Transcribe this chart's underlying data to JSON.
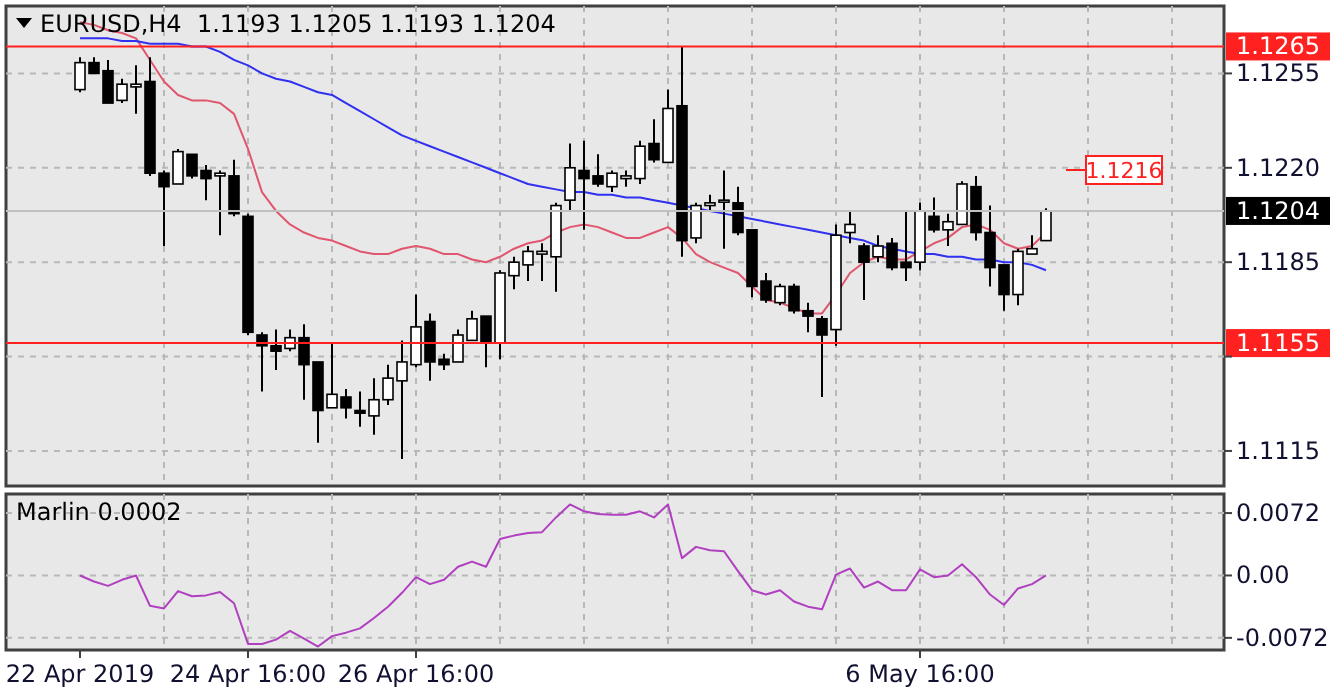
{
  "chart_data": [
    {
      "type": "candlestick",
      "title": "EURUSD,H4  1.1193 1.1205 1.1193 1.1204",
      "tick_labels": "y",
      "grid": true,
      "categories": [
        null,
        null,
        null,
        null,
        null,
        null,
        null,
        null,
        null,
        null,
        null,
        null,
        null,
        null,
        null,
        null,
        null,
        null,
        null,
        null,
        null,
        null,
        null,
        null,
        null,
        null,
        null,
        null,
        null,
        null,
        null,
        null,
        null,
        null,
        null,
        null,
        null,
        null,
        null,
        null,
        null,
        null,
        null,
        null,
        null,
        null,
        null,
        null,
        null,
        null,
        null,
        null,
        null,
        null,
        null,
        null,
        null,
        null,
        null,
        null,
        null,
        null,
        null,
        null,
        null,
        null,
        null,
        null,
        null,
        null
      ],
      "ohlc": [
        [
          1.1249,
          1.1261,
          1.1248,
          1.1259
        ],
        [
          1.1259,
          1.1261,
          1.1255,
          1.1255
        ],
        [
          1.1256,
          1.126,
          1.1244,
          1.1244
        ],
        [
          1.1245,
          1.1253,
          1.1244,
          1.1251
        ],
        [
          1.125,
          1.1258,
          1.124,
          1.1251
        ],
        [
          1.1252,
          1.1261,
          1.1217,
          1.1218
        ],
        [
          1.1218,
          1.1219,
          1.1191,
          1.1213
        ],
        [
          1.1214,
          1.1227,
          1.1214,
          1.1226
        ],
        [
          1.1225,
          1.1225,
          1.1216,
          1.1217
        ],
        [
          1.1219,
          1.1221,
          1.1208,
          1.1216
        ],
        [
          1.1217,
          1.1219,
          1.1195,
          1.1218
        ],
        [
          1.1217,
          1.1223,
          1.1202,
          1.1203
        ],
        [
          1.1202,
          1.1203,
          1.1158,
          1.1159
        ],
        [
          1.1158,
          1.1159,
          1.1137,
          1.1154
        ],
        [
          1.1154,
          1.116,
          1.1145,
          1.1152
        ],
        [
          1.1153,
          1.116,
          1.1152,
          1.1157
        ],
        [
          1.1157,
          1.1162,
          1.1134,
          1.1147
        ],
        [
          1.1148,
          1.1148,
          1.1118,
          1.113
        ],
        [
          1.1131,
          1.1155,
          1.1131,
          1.1136
        ],
        [
          1.1135,
          1.1138,
          1.1127,
          1.1131
        ],
        [
          1.113,
          1.1137,
          1.1124,
          1.1129
        ],
        [
          1.1128,
          1.1142,
          1.1121,
          1.1134
        ],
        [
          1.1134,
          1.1147,
          1.1132,
          1.1142
        ],
        [
          1.1141,
          1.1156,
          1.1112,
          1.1148
        ],
        [
          1.1147,
          1.1173,
          1.1146,
          1.1161
        ],
        [
          1.1163,
          1.1166,
          1.1141,
          1.1148
        ],
        [
          1.1149,
          1.1151,
          1.1145,
          1.1147
        ],
        [
          1.1148,
          1.116,
          1.1148,
          1.1158
        ],
        [
          1.1156,
          1.1167,
          1.1156,
          1.1164
        ],
        [
          1.1165,
          1.1165,
          1.1146,
          1.1155
        ],
        [
          1.1155,
          1.1182,
          1.1149,
          1.1181
        ],
        [
          1.118,
          1.1187,
          1.1175,
          1.1185
        ],
        [
          1.1184,
          1.1191,
          1.1178,
          1.1189
        ],
        [
          1.1188,
          1.1192,
          1.1178,
          1.1189
        ],
        [
          1.1187,
          1.1207,
          1.1174,
          1.1206
        ],
        [
          1.1208,
          1.1229,
          1.1204,
          1.122
        ],
        [
          1.1219,
          1.123,
          1.1197,
          1.1216
        ],
        [
          1.1217,
          1.1225,
          1.1213,
          1.1214
        ],
        [
          1.1213,
          1.1219,
          1.1211,
          1.1218
        ],
        [
          1.1216,
          1.1219,
          1.1213,
          1.1217
        ],
        [
          1.1216,
          1.123,
          1.1214,
          1.1228
        ],
        [
          1.1229,
          1.1238,
          1.1222,
          1.1223
        ],
        [
          1.1222,
          1.1249,
          1.1222,
          1.1242
        ],
        [
          1.1243,
          1.1265,
          1.1187,
          1.1193
        ],
        [
          1.1194,
          1.1207,
          1.1192,
          1.1206
        ],
        [
          1.1206,
          1.121,
          1.1204,
          1.1207
        ],
        [
          1.1208,
          1.1219,
          1.119,
          1.1208
        ],
        [
          1.1207,
          1.1213,
          1.1195,
          1.1196
        ],
        [
          1.1197,
          1.1197,
          1.1172,
          1.1176
        ],
        [
          1.1178,
          1.1181,
          1.117,
          1.1171
        ],
        [
          1.117,
          1.1177,
          1.1169,
          1.1176
        ],
        [
          1.1176,
          1.1177,
          1.1166,
          1.1167
        ],
        [
          1.1167,
          1.117,
          1.1159,
          1.1165
        ],
        [
          1.1164,
          1.1165,
          1.1135,
          1.1158
        ],
        [
          1.116,
          1.1199,
          1.1154,
          1.1195
        ],
        [
          1.1196,
          1.1204,
          1.1192,
          1.1199
        ],
        [
          1.1191,
          1.1192,
          1.1171,
          1.1185
        ],
        [
          1.1187,
          1.1195,
          1.1185,
          1.1191
        ],
        [
          1.1192,
          1.1194,
          1.1182,
          1.1183
        ],
        [
          1.1185,
          1.1204,
          1.1178,
          1.1183
        ],
        [
          1.1185,
          1.1207,
          1.1182,
          1.1204
        ],
        [
          1.1202,
          1.1209,
          1.1196,
          1.1197
        ],
        [
          1.1197,
          1.1203,
          1.1191,
          1.12
        ],
        [
          1.1199,
          1.1215,
          1.1199,
          1.1214
        ],
        [
          1.1213,
          1.1217,
          1.1193,
          1.1196
        ],
        [
          1.1196,
          1.1206,
          1.1176,
          1.1183
        ],
        [
          1.1184,
          1.1184,
          1.1167,
          1.1173
        ],
        [
          1.1173,
          1.119,
          1.1169,
          1.1189
        ],
        [
          1.1188,
          1.1195,
          1.1188,
          1.119
        ],
        [
          1.1193,
          1.1205,
          1.1193,
          1.1204
        ]
      ],
      "series": [
        {
          "type": "line",
          "color": "#e0566e",
          "values": [
            1.1274,
            1.1273,
            1.1271,
            1.127,
            1.1268,
            1.126,
            1.1252,
            1.1247,
            1.1245,
            1.1245,
            1.1244,
            1.124,
            1.1227,
            1.1211,
            1.1204,
            1.1199,
            1.1196,
            1.1194,
            1.1193,
            1.1191,
            1.1189,
            1.1188,
            1.1188,
            1.119,
            1.1191,
            1.119,
            1.1188,
            1.1188,
            1.1186,
            1.1185,
            1.1187,
            1.119,
            1.1192,
            1.1193,
            1.1196,
            1.1198,
            1.1199,
            1.1198,
            1.1196,
            1.1194,
            1.1194,
            1.1196,
            1.1198,
            1.1194,
            1.1188,
            1.1185,
            1.1183,
            1.1181,
            1.1176,
            1.1171,
            1.117,
            1.1168,
            1.1166,
            1.1166,
            1.1173,
            1.1181,
            1.1185,
            1.1187,
            1.1186,
            1.1186,
            1.1189,
            1.1192,
            1.1194,
            1.1198,
            1.1199,
            1.1197,
            1.1192,
            1.119,
            1.1191,
            1.1196
          ]
        },
        {
          "type": "line",
          "color": "#3030f0",
          "values": [
            1.1268,
            1.1268,
            1.1268,
            1.1267,
            1.1267,
            1.1266,
            1.1266,
            1.1266,
            1.1265,
            1.1265,
            1.1263,
            1.126,
            1.1258,
            1.1255,
            1.1253,
            1.1252,
            1.125,
            1.1248,
            1.1247,
            1.1244,
            1.1241,
            1.1238,
            1.1235,
            1.1232,
            1.123,
            1.1228,
            1.1226,
            1.1224,
            1.1222,
            1.122,
            1.1218,
            1.1216,
            1.1214,
            1.1213,
            1.1212,
            1.1211,
            1.1211,
            1.121,
            1.121,
            1.1209,
            1.1209,
            1.1208,
            1.1207,
            1.1206,
            1.1205,
            1.1204,
            1.1203,
            1.1202,
            1.1201,
            1.12,
            1.1199,
            1.1198,
            1.1197,
            1.1196,
            1.1195,
            1.1194,
            1.1193,
            1.1191,
            1.119,
            1.1189,
            1.1188,
            1.1188,
            1.1187,
            1.1187,
            1.1186,
            1.1186,
            1.1185,
            1.1185,
            1.1184,
            1.1182
          ]
        }
      ],
      "ylim": [
        1.1102,
        1.128
      ],
      "yticks": [
        1.1255,
        {
          "value": 1.122,
          "label": "1.1220"
        },
        1.1185,
        {
          "value": 1.115,
          "label": null
        },
        1.1115
      ],
      "ref_lines": [
        {
          "axis": "y",
          "value": 1.1265,
          "label": "1.1265",
          "color": "#ff2020"
        },
        {
          "axis": "y",
          "value": 1.1155,
          "label": "1.1155",
          "color": "#ff2020"
        },
        {
          "axis": "y",
          "value": 1.1204,
          "label": "1.1204",
          "color": "#c0c0c0"
        }
      ],
      "annotations": [
        "1.1216"
      ]
    },
    {
      "type": "line",
      "title": "Marlin 0.0002",
      "grid": true,
      "categories": [
        "22 Apr 2019",
        null,
        null,
        null,
        null,
        null,
        null,
        null,
        null,
        null,
        null,
        null,
        "24 Apr 16:00",
        null,
        null,
        null,
        null,
        null,
        null,
        null,
        null,
        null,
        null,
        null,
        "26 Apr 16:00",
        null,
        null,
        null,
        null,
        null,
        null,
        null,
        null,
        null,
        null,
        null,
        null,
        null,
        null,
        null,
        null,
        null,
        null,
        null,
        null,
        null,
        null,
        null,
        null,
        null,
        null,
        null,
        null,
        null,
        null,
        null,
        null,
        null,
        null,
        null,
        "6 May 16:00",
        null,
        null,
        null,
        null,
        null,
        null,
        null,
        null,
        null
      ],
      "series": [
        {
          "color": "#b040c0",
          "values": [
            0,
            -0.0007,
            -0.0012,
            -0.0005,
            0,
            -0.0035,
            -0.0038,
            -0.0018,
            -0.0024,
            -0.0023,
            -0.0019,
            -0.0032,
            -0.0079,
            -0.0079,
            -0.0074,
            -0.0064,
            -0.0073,
            -0.0082,
            -0.007,
            -0.0066,
            -0.0061,
            -0.0049,
            -0.0036,
            -0.002,
            -0.0002,
            -0.001,
            -0.0005,
            0.001,
            0.0016,
            0.001,
            0.0042,
            0.0046,
            0.0049,
            0.005,
            0.0067,
            0.0082,
            0.0074,
            0.0071,
            0.007,
            0.007,
            0.0074,
            0.0067,
            0.0082,
            0.002,
            0.0033,
            0.0029,
            0.0028,
            0.0005,
            -0.0017,
            -0.0022,
            -0.0017,
            -0.003,
            -0.0036,
            -0.0039,
            0.0001,
            0.0008,
            -0.0014,
            -0.0007,
            -0.0017,
            -0.0017,
            0.0007,
            -0.0002,
            0,
            0.0013,
            -0.0002,
            -0.0022,
            -0.0034,
            -0.0015,
            -0.001,
            0
          ]
        }
      ],
      "ylim": [
        -0.0086,
        0.0094
      ],
      "yticks": [
        0.0072,
        {
          "value": 0,
          "label": "0.00"
        },
        -0.0072
      ]
    }
  ]
}
